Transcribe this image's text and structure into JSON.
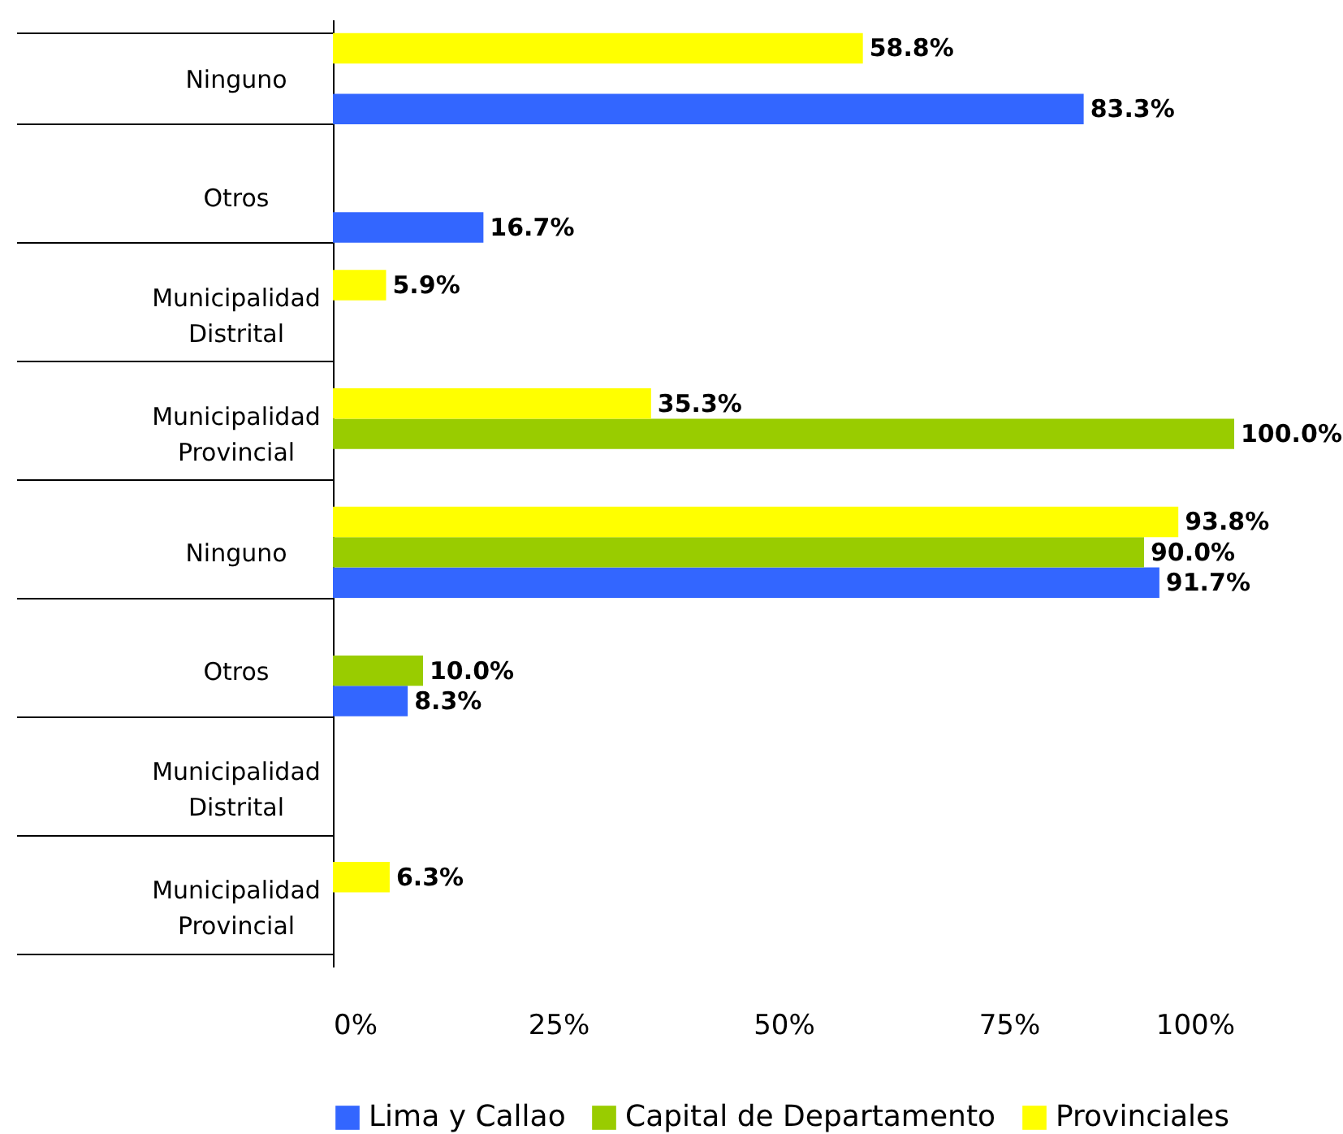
{
  "chart_data": {
    "type": "bar",
    "orientation": "horizontal",
    "categories": [
      "Ninguno",
      "Otros",
      "Municipalidad Distrital",
      "Municipalidad Provincial",
      "Ninguno",
      "Otros",
      "Municipalidad Distrital",
      "Municipalidad Provincial"
    ],
    "series": [
      {
        "name": "Lima y Callao",
        "color": "#3366ff",
        "values": [
          83.3,
          16.7,
          null,
          null,
          91.7,
          8.3,
          null,
          null
        ],
        "value_labels": [
          "83.3%",
          "16.7%",
          null,
          null,
          "91.7%",
          "8.3%",
          null,
          null
        ]
      },
      {
        "name": "Capital de Departamento",
        "color": "#99cc00",
        "values": [
          null,
          null,
          null,
          100.0,
          90.0,
          10.0,
          null,
          null
        ],
        "value_labels": [
          null,
          null,
          null,
          "100.0%",
          "90.0%",
          "10.0%",
          null,
          null
        ]
      },
      {
        "name": "Provinciales",
        "color": "#ffff00",
        "values": [
          58.8,
          null,
          5.9,
          35.3,
          93.8,
          null,
          null,
          6.3
        ],
        "value_labels": [
          "58.8%",
          null,
          "5.9%",
          "35.3%",
          "93.8%",
          null,
          null,
          "6.3%"
        ]
      }
    ],
    "xlim": [
      0,
      100
    ],
    "xticks": [
      {
        "value": 0,
        "label": "0%"
      },
      {
        "value": 25,
        "label": "25%"
      },
      {
        "value": 50,
        "label": "50%"
      },
      {
        "value": 75,
        "label": "75%"
      },
      {
        "value": 100,
        "label": "100%"
      }
    ],
    "legend": "bottom",
    "grid": false
  }
}
